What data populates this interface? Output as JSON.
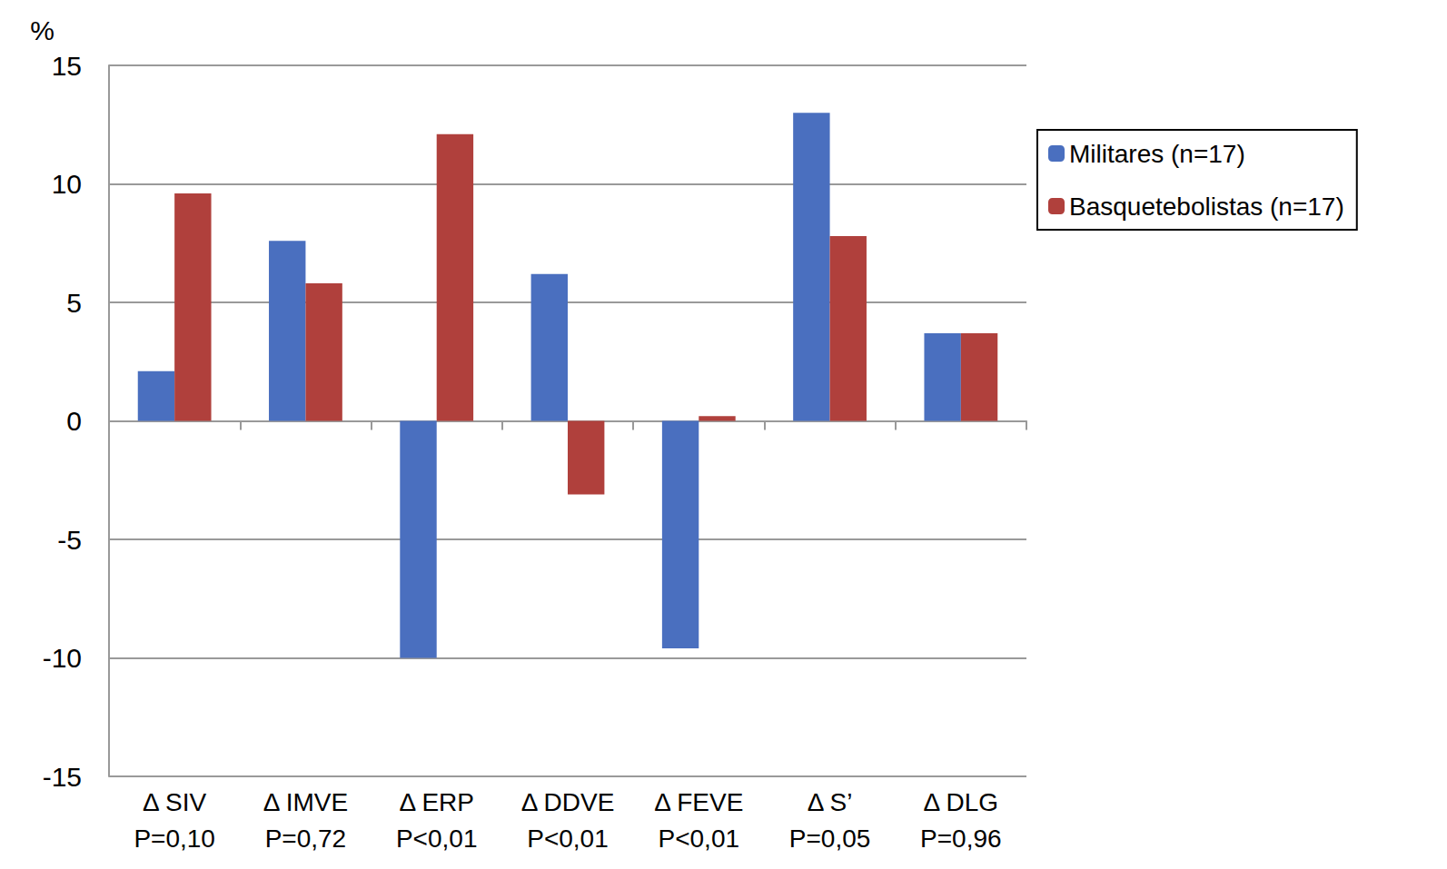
{
  "chart_data": {
    "type": "bar",
    "y_label": "%",
    "categories": [
      "Δ SIV",
      "Δ IMVE",
      "Δ ERP",
      "Δ DDVE",
      "Δ FEVE",
      "Δ S’",
      "Δ DLG"
    ],
    "annotations": [
      "P=0,10",
      "P=0,72",
      "P<0,01",
      "P<0,01",
      "P<0,01",
      "P=0,05",
      "P=0,96"
    ],
    "series": [
      {
        "name": "Militares (n=17)",
        "color": "#4a6fbf",
        "values": [
          2.1,
          7.6,
          -10.0,
          6.2,
          -9.6,
          13.0,
          3.7
        ]
      },
      {
        "name": "Basquetebolistas (n=17)",
        "color": "#b0403c",
        "values": [
          9.6,
          5.8,
          12.1,
          -3.1,
          0.2,
          7.8,
          3.7
        ]
      }
    ],
    "ylim": [
      -15,
      15
    ],
    "yticks": [
      -15,
      -10,
      -5,
      0,
      5,
      10,
      15
    ],
    "grid": true,
    "legend": "right"
  }
}
